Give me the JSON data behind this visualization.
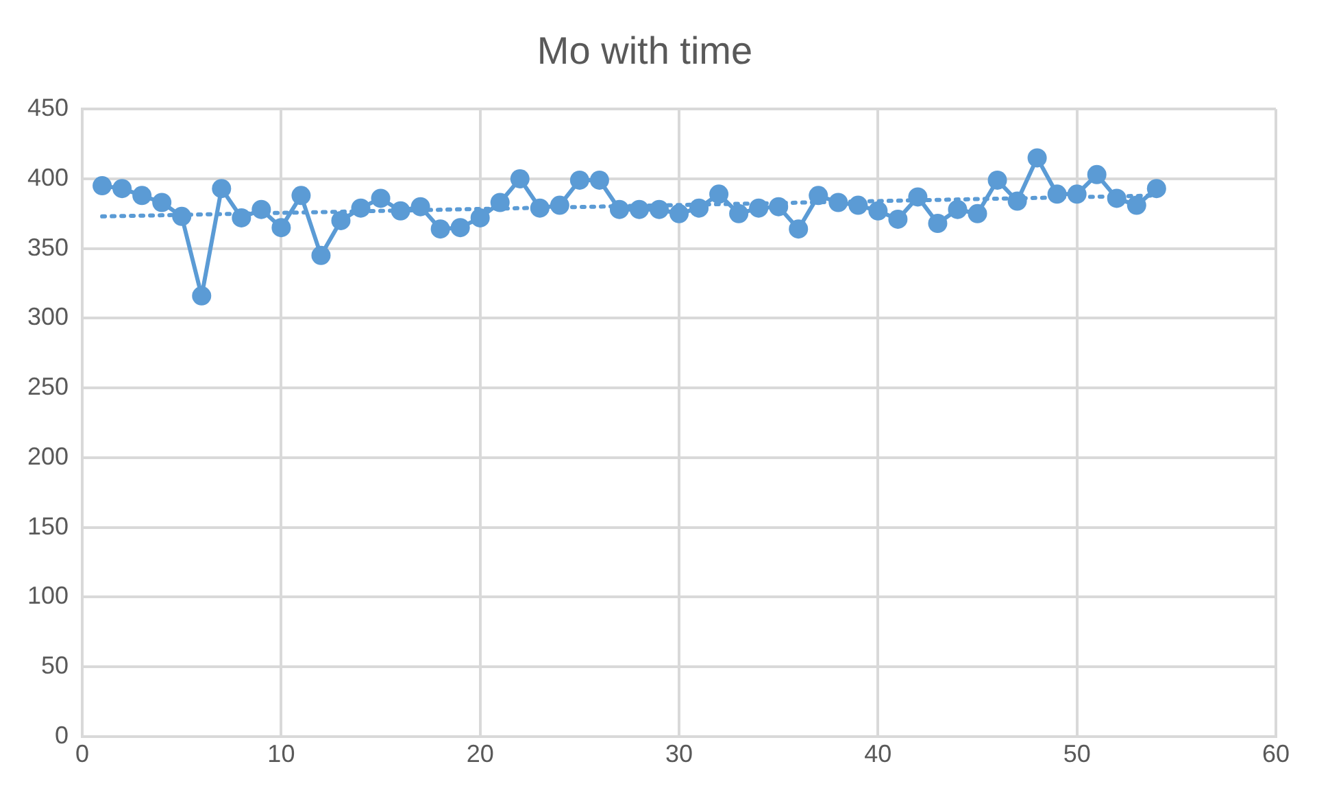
{
  "chart_data": {
    "type": "line",
    "title": "Mo with time",
    "x": [
      1,
      2,
      3,
      4,
      5,
      6,
      7,
      8,
      9,
      10,
      11,
      12,
      13,
      14,
      15,
      16,
      17,
      18,
      19,
      20,
      21,
      22,
      23,
      24,
      25,
      26,
      27,
      28,
      29,
      30,
      31,
      32,
      33,
      34,
      35,
      36,
      37,
      38,
      39,
      40,
      41,
      42,
      43,
      44,
      45,
      46,
      47,
      48,
      49,
      50,
      51,
      52,
      53,
      54
    ],
    "series": [
      {
        "color": "#5b9bd5",
        "marker": "circle",
        "line_style": "solid",
        "values": [
          395,
          393,
          388,
          383,
          373,
          316,
          393,
          372,
          378,
          365,
          388,
          345,
          370,
          379,
          386,
          377,
          380,
          364,
          365,
          372,
          383,
          400,
          379,
          381,
          399,
          399,
          378,
          378,
          378,
          375,
          379,
          389,
          375,
          379,
          380,
          364,
          388,
          383,
          381,
          377,
          371,
          387,
          368,
          378,
          375,
          399,
          384,
          415,
          389,
          389,
          403,
          386,
          381,
          393
        ]
      },
      {
        "type": "line",
        "color": "#5b9bd5",
        "marker": "none",
        "line_style": "dotted",
        "x": [
          1,
          54
        ],
        "values": [
          373,
          388
        ]
      }
    ],
    "xlim": [
      0,
      60
    ],
    "xticks": [
      0,
      10,
      20,
      30,
      40,
      50,
      60
    ],
    "ylim": [
      0,
      450
    ],
    "yticks": [
      0,
      50,
      100,
      150,
      200,
      250,
      300,
      350,
      400,
      450
    ],
    "grid": true,
    "legend": false
  }
}
